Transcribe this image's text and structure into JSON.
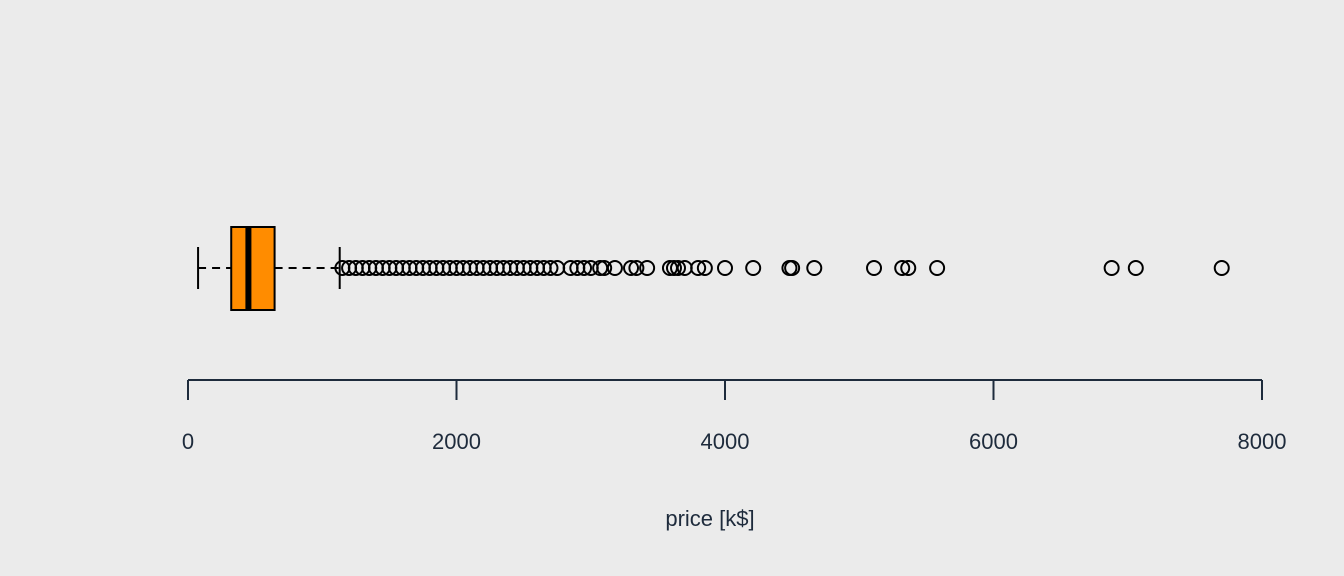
{
  "chart_data": {
    "type": "boxplot",
    "orientation": "horizontal",
    "xlabel": "price [k$]",
    "xlim": [
      0,
      8000
    ],
    "ticks": [
      0,
      2000,
      4000,
      6000,
      8000
    ],
    "tick_labels": [
      "0",
      "2000",
      "4000",
      "6000",
      "8000"
    ],
    "box": {
      "whisker_low": 75,
      "q1": 322,
      "median": 450,
      "q3": 645,
      "whisker_high": 1130
    },
    "outliers": [
      1150,
      1200,
      1250,
      1300,
      1350,
      1400,
      1450,
      1500,
      1550,
      1600,
      1650,
      1700,
      1750,
      1800,
      1850,
      1900,
      1950,
      2000,
      2050,
      2100,
      2150,
      2200,
      2250,
      2300,
      2350,
      2400,
      2450,
      2500,
      2550,
      2600,
      2650,
      2700,
      2750,
      2850,
      2900,
      2950,
      3000,
      3070,
      3100,
      3180,
      3300,
      3340,
      3420,
      3590,
      3620,
      3650,
      3700,
      3800,
      3850,
      4000,
      4210,
      4480,
      4500,
      4665,
      5110,
      5320,
      5365,
      5580,
      6880,
      7060,
      7700
    ],
    "box_color": "#ff8c00",
    "grid": false
  }
}
